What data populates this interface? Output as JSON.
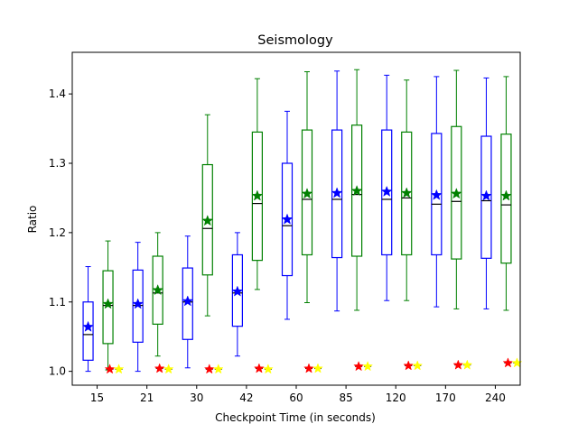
{
  "chart_data": {
    "type": "box",
    "title": "Seismology",
    "xlabel": "Checkpoint Time (in seconds)",
    "ylabel": "Ratio",
    "categories": [
      "15",
      "21",
      "30",
      "42",
      "60",
      "85",
      "120",
      "170",
      "240"
    ],
    "ylim": [
      0.98,
      1.46
    ],
    "yticks": [
      "1.0",
      "1.1",
      "1.2",
      "1.3",
      "1.4"
    ],
    "ytick_values": [
      1.0,
      1.1,
      1.2,
      1.3,
      1.4
    ],
    "grid": false,
    "colors": {
      "blue": "#0000ff",
      "green": "#008000",
      "red": "#ff0000",
      "yellow": "#ffff00",
      "median": "#000000"
    },
    "box_series": [
      {
        "color": "blue",
        "whisker_low": [
          1.0,
          1.0,
          1.005,
          1.022,
          1.075,
          1.087,
          1.102,
          1.093,
          1.09
        ],
        "q1": [
          1.016,
          1.042,
          1.046,
          1.065,
          1.138,
          1.164,
          1.168,
          1.168,
          1.163
        ],
        "median": [
          1.053,
          1.095,
          1.1,
          1.113,
          1.21,
          1.248,
          1.248,
          1.241,
          1.246
        ],
        "q3": [
          1.1,
          1.146,
          1.149,
          1.168,
          1.3,
          1.348,
          1.348,
          1.343,
          1.339
        ],
        "whisker_high": [
          1.151,
          1.186,
          1.195,
          1.2,
          1.375,
          1.433,
          1.427,
          1.425,
          1.423
        ],
        "mean": [
          1.064,
          1.097,
          1.101,
          1.115,
          1.219,
          1.257,
          1.259,
          1.254,
          1.253
        ]
      },
      {
        "color": "green",
        "whisker_low": [
          1.002,
          1.022,
          1.08,
          1.118,
          1.099,
          1.088,
          1.102,
          1.09,
          1.088
        ],
        "q1": [
          1.04,
          1.068,
          1.139,
          1.16,
          1.168,
          1.166,
          1.168,
          1.162,
          1.156
        ],
        "median": [
          1.095,
          1.113,
          1.206,
          1.242,
          1.248,
          1.255,
          1.25,
          1.245,
          1.24
        ],
        "q3": [
          1.145,
          1.166,
          1.298,
          1.345,
          1.348,
          1.355,
          1.345,
          1.353,
          1.342
        ],
        "whisker_high": [
          1.188,
          1.2,
          1.37,
          1.422,
          1.432,
          1.435,
          1.42,
          1.434,
          1.425
        ],
        "mean": [
          1.097,
          1.117,
          1.217,
          1.253,
          1.256,
          1.26,
          1.257,
          1.256,
          1.253
        ]
      }
    ],
    "flat_series": [
      {
        "color": "red",
        "value": [
          1.003,
          1.004,
          1.003,
          1.004,
          1.004,
          1.007,
          1.008,
          1.009,
          1.012
        ]
      },
      {
        "color": "yellow",
        "value": [
          1.003,
          1.003,
          1.003,
          1.003,
          1.004,
          1.007,
          1.008,
          1.009,
          1.012
        ]
      }
    ]
  }
}
